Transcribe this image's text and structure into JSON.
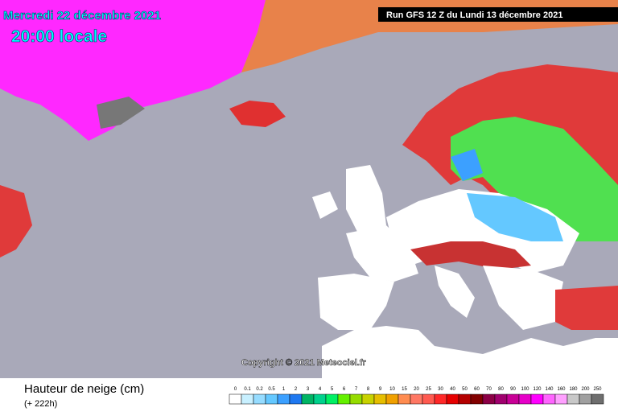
{
  "header": {
    "date": "Mercredi 22 décembre 2021",
    "time": "20:00 locale",
    "run": "Run GFS 12 Z du Lundi 13 décembre 2021"
  },
  "copyright": "Copyright © 2021 Meteociel.fr",
  "legend": {
    "title": "Hauteur de neige (cm)",
    "subtitle": "(+ 222h)",
    "values": [
      0,
      0.1,
      0.2,
      0.5,
      1,
      2,
      3,
      4,
      5,
      6,
      7,
      8,
      9,
      10,
      15,
      20,
      25,
      30,
      40,
      50,
      60,
      70,
      80,
      90,
      100,
      120,
      140,
      160,
      180,
      200,
      250
    ],
    "colors": [
      "#ffffff",
      "#c8f0ff",
      "#96dcff",
      "#64c8ff",
      "#3ca0ff",
      "#1e78f0",
      "#00b464",
      "#00d28c",
      "#00f064",
      "#64f000",
      "#96dc00",
      "#c8d200",
      "#e6be00",
      "#f0a000",
      "#ff8c50",
      "#ff7864",
      "#ff5a50",
      "#ff2828",
      "#e60000",
      "#b40000",
      "#820000",
      "#8c0046",
      "#a0006e",
      "#c80096",
      "#e600c8",
      "#ff00ff",
      "#ff64ff",
      "#ffa0ff",
      "#c8c8c8",
      "#a0a0a0",
      "#6e6e6e"
    ]
  }
}
